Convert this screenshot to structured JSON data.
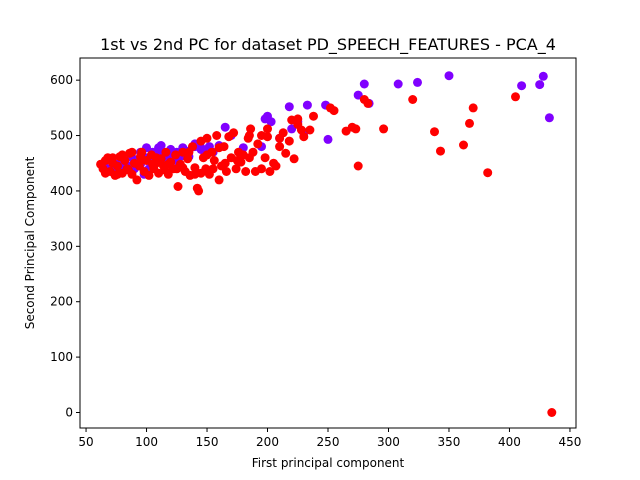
{
  "chart_data": {
    "type": "scatter",
    "title": "1st vs 2nd PC for dataset PD_SPEECH_FEATURES - PCA_4",
    "xlabel": "First principal component",
    "ylabel": "Second Principal Component",
    "xlim": [
      45,
      455
    ],
    "ylim": [
      -28,
      640
    ],
    "xticks": [
      50,
      100,
      150,
      200,
      250,
      300,
      350,
      400,
      450
    ],
    "yticks": [
      0,
      100,
      200,
      300,
      400,
      500,
      600
    ],
    "grid": false,
    "legend": "none",
    "colors": {
      "class_0": "#8000ff",
      "class_1": "#ff0000"
    },
    "series": [
      {
        "color_key": "class_0",
        "points": [
          [
            65,
            445
          ],
          [
            70,
            440
          ],
          [
            75,
            448
          ],
          [
            80,
            452
          ],
          [
            85,
            445
          ],
          [
            90,
            455
          ],
          [
            95,
            448
          ],
          [
            100,
            460
          ],
          [
            105,
            450
          ],
          [
            110,
            470
          ],
          [
            115,
            465
          ],
          [
            120,
            475
          ],
          [
            125,
            470
          ],
          [
            130,
            478
          ],
          [
            135,
            472
          ],
          [
            140,
            480
          ],
          [
            145,
            475
          ],
          [
            100,
            478
          ],
          [
            105,
            470
          ],
          [
            110,
            478
          ],
          [
            112,
            482
          ],
          [
            118,
            460
          ],
          [
            122,
            468
          ],
          [
            128,
            462
          ],
          [
            95,
            470
          ],
          [
            88,
            460
          ],
          [
            82,
            450
          ],
          [
            78,
            445
          ],
          [
            72,
            438
          ],
          [
            68,
            436
          ],
          [
            115,
            455
          ],
          [
            108,
            452
          ],
          [
            140,
            485
          ],
          [
            145,
            478
          ],
          [
            152,
            480
          ],
          [
            160,
            482
          ],
          [
            155,
            470
          ],
          [
            165,
            515
          ],
          [
            170,
            500
          ],
          [
            180,
            478
          ],
          [
            195,
            480
          ],
          [
            198,
            530
          ],
          [
            200,
            535
          ],
          [
            203,
            525
          ],
          [
            210,
            495
          ],
          [
            218,
            552
          ],
          [
            220,
            512
          ],
          [
            225,
            525
          ],
          [
            230,
            505
          ],
          [
            233,
            555
          ],
          [
            248,
            555
          ],
          [
            250,
            493
          ],
          [
            275,
            573
          ],
          [
            280,
            593
          ],
          [
            284,
            558
          ],
          [
            308,
            593
          ],
          [
            324,
            596
          ],
          [
            350,
            608
          ],
          [
            410,
            590
          ],
          [
            425,
            592
          ],
          [
            428,
            607
          ],
          [
            433,
            532
          ],
          [
            98,
            430
          ],
          [
            102,
            440
          ],
          [
            125,
            455
          ],
          [
            135,
            462
          ],
          [
            148,
            470
          ],
          [
            90,
            440
          ]
        ]
      },
      {
        "color_key": "class_1",
        "points": [
          [
            62,
            448
          ],
          [
            64,
            440
          ],
          [
            66,
            455
          ],
          [
            68,
            460
          ],
          [
            70,
            435
          ],
          [
            72,
            450
          ],
          [
            74,
            428
          ],
          [
            76,
            445
          ],
          [
            78,
            462
          ],
          [
            80,
            432
          ],
          [
            82,
            455
          ],
          [
            84,
            440
          ],
          [
            86,
            468
          ],
          [
            88,
            430
          ],
          [
            90,
            450
          ],
          [
            92,
            420
          ],
          [
            94,
            445
          ],
          [
            96,
            470
          ],
          [
            98,
            435
          ],
          [
            100,
            455
          ],
          [
            102,
            428
          ],
          [
            104,
            465
          ],
          [
            106,
            440
          ],
          [
            108,
            450
          ],
          [
            110,
            432
          ],
          [
            112,
            458
          ],
          [
            114,
            445
          ],
          [
            116,
            470
          ],
          [
            118,
            430
          ],
          [
            120,
            452
          ],
          [
            122,
            440
          ],
          [
            124,
            465
          ],
          [
            126,
            408
          ],
          [
            128,
            448
          ],
          [
            130,
            470
          ],
          [
            132,
            435
          ],
          [
            134,
            458
          ],
          [
            136,
            428
          ],
          [
            138,
            480
          ],
          [
            140,
            442
          ],
          [
            142,
            405
          ],
          [
            143,
            400
          ],
          [
            145,
            490
          ],
          [
            147,
            460
          ],
          [
            149,
            440
          ],
          [
            150,
            495
          ],
          [
            152,
            430
          ],
          [
            154,
            470
          ],
          [
            156,
            455
          ],
          [
            158,
            500
          ],
          [
            160,
            420
          ],
          [
            162,
            445
          ],
          [
            164,
            480
          ],
          [
            166,
            435
          ],
          [
            168,
            498
          ],
          [
            170,
            460
          ],
          [
            172,
            505
          ],
          [
            174,
            440
          ],
          [
            176,
            470
          ],
          [
            178,
            452
          ],
          [
            180,
            465
          ],
          [
            182,
            435
          ],
          [
            184,
            495
          ],
          [
            186,
            512
          ],
          [
            188,
            470
          ],
          [
            190,
            435
          ],
          [
            192,
            485
          ],
          [
            195,
            500
          ],
          [
            198,
            460
          ],
          [
            200,
            512
          ],
          [
            202,
            435
          ],
          [
            205,
            450
          ],
          [
            207,
            445
          ],
          [
            210,
            480
          ],
          [
            213,
            505
          ],
          [
            215,
            468
          ],
          [
            218,
            490
          ],
          [
            220,
            528
          ],
          [
            222,
            458
          ],
          [
            225,
            530
          ],
          [
            228,
            510
          ],
          [
            230,
            498
          ],
          [
            235,
            510
          ],
          [
            238,
            535
          ],
          [
            252,
            550
          ],
          [
            255,
            545
          ],
          [
            265,
            508
          ],
          [
            270,
            515
          ],
          [
            273,
            512
          ],
          [
            275,
            445
          ],
          [
            280,
            565
          ],
          [
            283,
            558
          ],
          [
            296,
            512
          ],
          [
            320,
            565
          ],
          [
            338,
            507
          ],
          [
            343,
            472
          ],
          [
            362,
            483
          ],
          [
            367,
            522
          ],
          [
            370,
            550
          ],
          [
            382,
            433
          ],
          [
            405,
            570
          ],
          [
            435,
            0
          ],
          [
            140,
            430
          ],
          [
            130,
            442
          ],
          [
            118,
            448
          ],
          [
            108,
            460
          ],
          [
            95,
            462
          ],
          [
            85,
            438
          ],
          [
            76,
            430
          ],
          [
            66,
            432
          ],
          [
            150,
            465
          ],
          [
            160,
            478
          ],
          [
            175,
            455
          ],
          [
            185,
            500
          ],
          [
            165,
            450
          ],
          [
            155,
            440
          ],
          [
            145,
            432
          ],
          [
            135,
            470
          ],
          [
            125,
            440
          ],
          [
            115,
            438
          ],
          [
            105,
            448
          ],
          [
            96,
            456
          ],
          [
            88,
            470
          ],
          [
            80,
            465
          ],
          [
            72,
            460
          ],
          [
            200,
            498
          ],
          [
            195,
            440
          ],
          [
            210,
            495
          ],
          [
            225,
            520
          ],
          [
            185,
            460
          ]
        ]
      }
    ]
  }
}
